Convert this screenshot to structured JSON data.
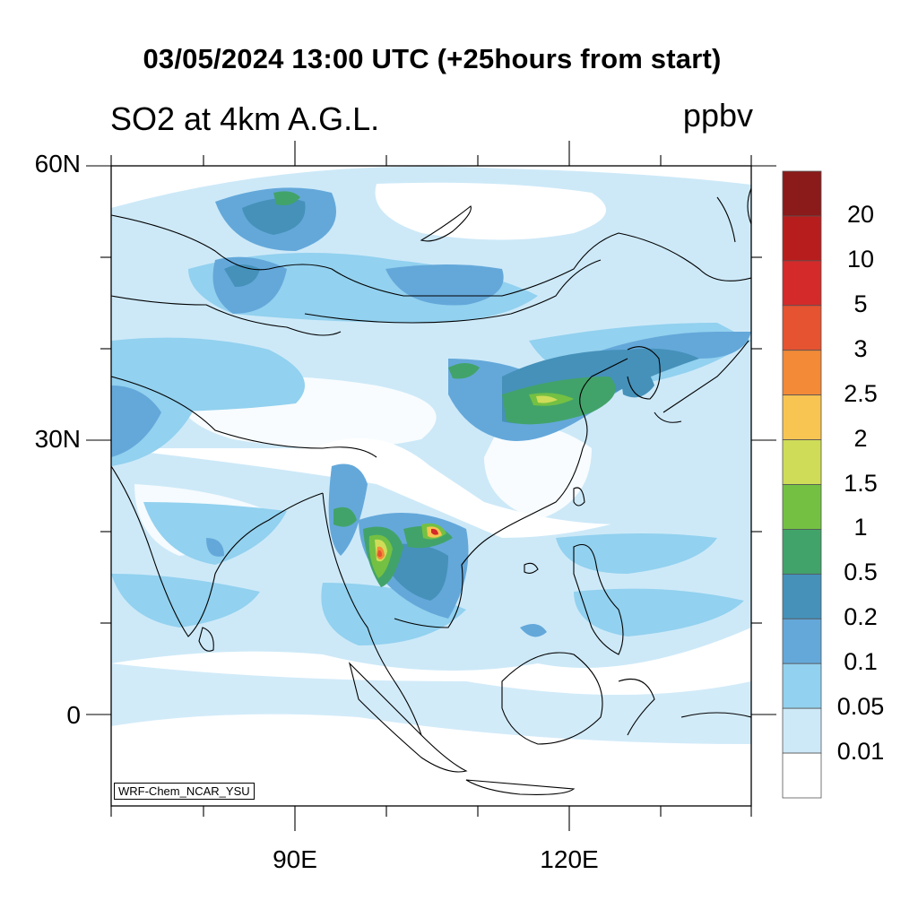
{
  "header": {
    "title": "03/05/2024 13:00 UTC (+25hours from start)",
    "subtitle": "SO2 at 4km A.G.L.",
    "units": "ppbv"
  },
  "axes": {
    "lat_labels": [
      {
        "text": "60N",
        "lat": 60
      },
      {
        "text": "30N",
        "lat": 30
      },
      {
        "text": "0",
        "lat": 0
      }
    ],
    "lon_labels": [
      {
        "text": "90E",
        "lon": 90
      },
      {
        "text": "120E",
        "lon": 120
      }
    ],
    "lon_range": [
      70,
      140
    ],
    "lat_range": [
      -10,
      60
    ]
  },
  "credit": "WRF-Chem_NCAR_YSU",
  "colorbar": {
    "labels": [
      "20",
      "10",
      "5",
      "3",
      "2.5",
      "2",
      "1.5",
      "1",
      "0.5",
      "0.2",
      "0.1",
      "0.05",
      "0.01"
    ],
    "colors": [
      "#8b1a1a",
      "#b81d1d",
      "#d42a2a",
      "#e55330",
      "#f28a38",
      "#f8c552",
      "#cfdc58",
      "#74c043",
      "#42a36a",
      "#4591ba",
      "#64a8da",
      "#92d1ef",
      "#cde9f8",
      "#ffffff"
    ]
  }
}
